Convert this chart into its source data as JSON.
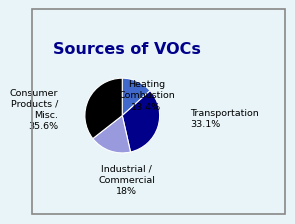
{
  "title": "Sources of VOCs",
  "slices": [
    {
      "label": "Heating\nCombustion\n13.4%",
      "value": 13.4,
      "color": "#4169cc"
    },
    {
      "label": "Transportation\n33.1%",
      "value": 33.1,
      "color": "#00008b"
    },
    {
      "label": "Industrial /\nCommercial\n18%",
      "value": 18.0,
      "color": "#9999dd"
    },
    {
      "label": "Consumer\nProducts /\nMisc.\n35.6%",
      "value": 35.6,
      "color": "#000000"
    }
  ],
  "background_color": "#e8f4f8",
  "title_color": "#00008b",
  "title_fontsize": 11.5,
  "label_fontsize": 6.8,
  "border_color": "#888888",
  "startangle": 90
}
